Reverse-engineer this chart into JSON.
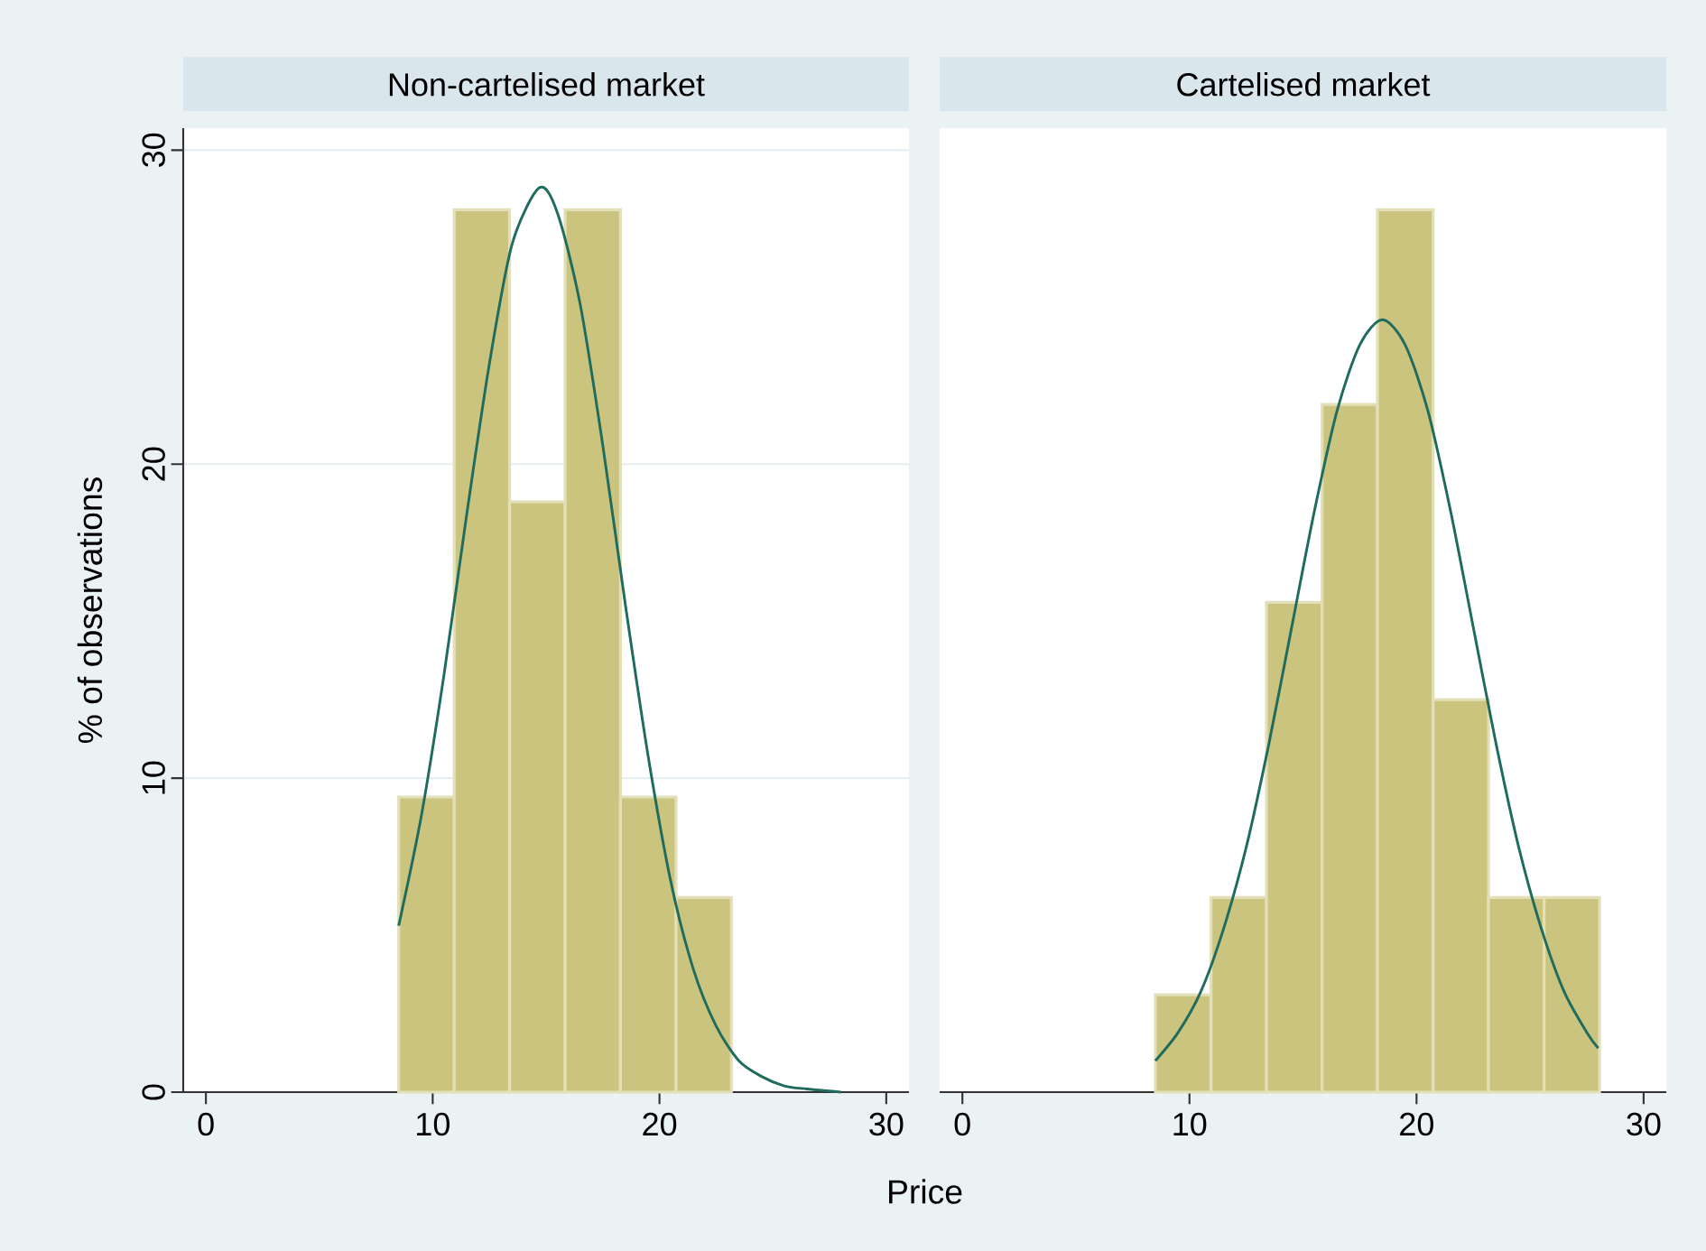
{
  "chart_data": [
    {
      "type": "histogram",
      "title": "Non-cartelised market",
      "xlabel": "Price",
      "ylabel": "% of observations",
      "xlim": [
        -1,
        31
      ],
      "ylim": [
        0,
        30.7
      ],
      "xticks": [
        0,
        10,
        20,
        30
      ],
      "yticks": [
        0,
        10,
        20,
        30
      ],
      "grid": "y",
      "series": [
        {
          "color": "#cbc47f",
          "bins": [
            8.5,
            10.95,
            13.39,
            15.84,
            18.28,
            20.73,
            23.17
          ],
          "values": [
            9.4,
            28.1,
            18.8,
            28.1,
            9.4,
            6.2
          ]
        },
        {
          "type": "line",
          "color": "#1f6b5e",
          "x": [
            8.5,
            9.5,
            10.5,
            11.5,
            12.5,
            13.5,
            14.7,
            15.5,
            16.5,
            17.5,
            18.5,
            19.5,
            20.5,
            21.5,
            22.5,
            23.5,
            24.5,
            25.5,
            26.5,
            28
          ],
          "values": [
            5.3,
            8.8,
            13.3,
            18.4,
            23.2,
            27.0,
            28.8,
            28.0,
            25.1,
            20.6,
            15.5,
            10.7,
            6.7,
            3.9,
            2.1,
            1.0,
            0.5,
            0.2,
            0.1,
            0.0
          ]
        }
      ]
    },
    {
      "type": "histogram",
      "title": "Cartelised market",
      "xlim": [
        -1,
        31
      ],
      "ylim": [
        0,
        30.7
      ],
      "xticks": [
        0,
        10,
        20,
        30
      ],
      "yticks": [
        0,
        10,
        20,
        30
      ],
      "grid": "y",
      "tick_labels": "x",
      "series": [
        {
          "color": "#cbc47f",
          "bins": [
            8.5,
            10.95,
            13.39,
            15.84,
            18.28,
            20.73,
            23.17,
            25.62,
            28.06
          ],
          "values": [
            3.1,
            6.2,
            15.6,
            21.9,
            28.1,
            12.5,
            6.2,
            6.2
          ]
        },
        {
          "type": "line",
          "color": "#1f6b5e",
          "x": [
            8.5,
            9.5,
            10.5,
            11.5,
            12.5,
            13.5,
            14.5,
            15.5,
            16.5,
            17.5,
            18.5,
            19.5,
            20.5,
            21.5,
            22.5,
            23.5,
            24.5,
            25.5,
            26.5,
            27.5,
            28
          ],
          "values": [
            1.0,
            1.9,
            3.2,
            5.2,
            7.8,
            11.1,
            14.8,
            18.5,
            21.7,
            23.8,
            24.6,
            23.8,
            21.7,
            18.5,
            14.8,
            11.1,
            7.8,
            5.2,
            3.2,
            1.9,
            1.4
          ]
        }
      ]
    }
  ]
}
